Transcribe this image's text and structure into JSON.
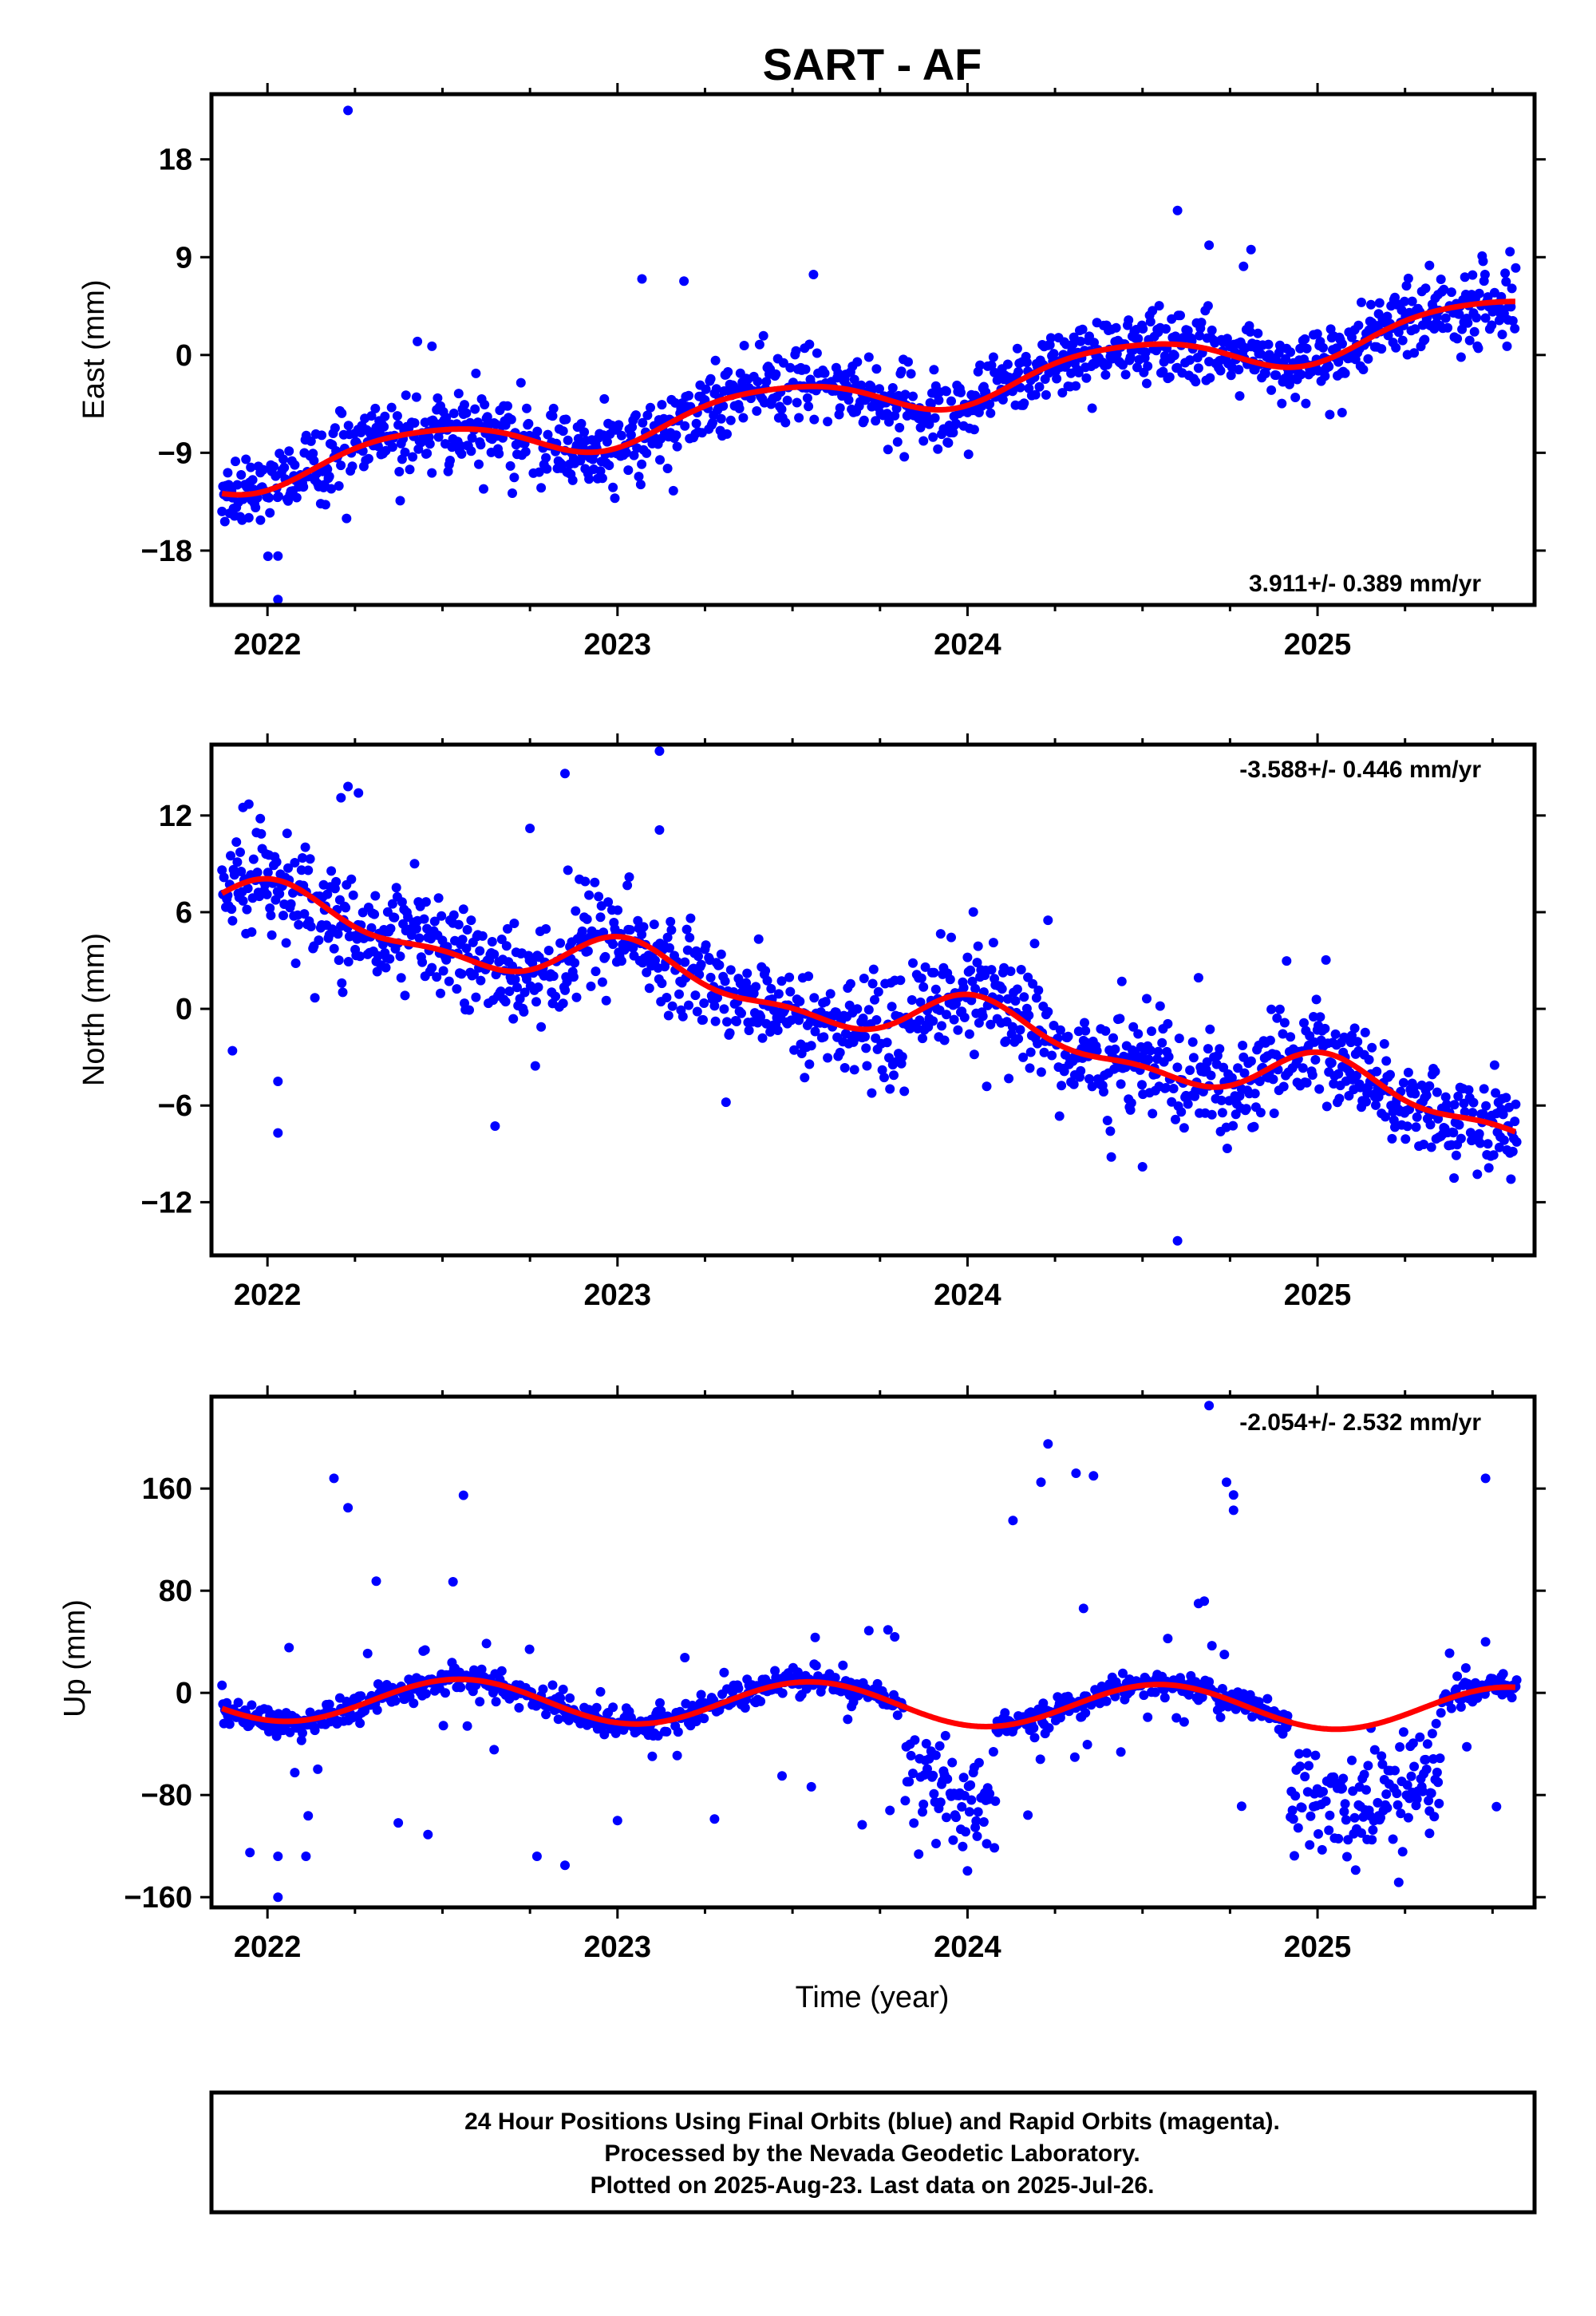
{
  "title": "SART - AF",
  "chart_data": [
    {
      "type": "scatter",
      "component": "east",
      "ylabel": "East (mm)",
      "ylim": [
        -23,
        24
      ],
      "xlim": [
        2021.84,
        2025.62
      ],
      "yticks": [
        -18,
        -9,
        0,
        9,
        18
      ],
      "ytick_labels": [
        "−18",
        "−9",
        "0",
        "9",
        "18"
      ],
      "xticks": [
        2022,
        2023,
        2024,
        2025
      ],
      "xtick_labels": [
        "2022",
        "2023",
        "2024",
        "2025"
      ],
      "rate_label": "3.911+/- 0.389 mm/yr",
      "rate_position": "bottom-right",
      "rate": 3.911,
      "offset": -10.8,
      "annual": {
        "amplitude": 1.9,
        "peak": 0.45
      },
      "semiannual": {
        "amplitude": 0.3,
        "peak": 0.2
      },
      "noise": 1.6,
      "outliers": [
        [
          2022.23,
          22.5
        ],
        [
          2022.03,
          -22.5
        ],
        [
          2022.03,
          -18.5
        ],
        [
          2021.98,
          -15.2
        ],
        [
          2022.47,
          0.8
        ],
        [
          2023.07,
          7.0
        ],
        [
          2023.19,
          6.8
        ],
        [
          2023.56,
          7.4
        ],
        [
          2024.6,
          13.3
        ],
        [
          2024.69,
          10.1
        ],
        [
          2024.81,
          9.7
        ],
        [
          2025.07,
          -5.3
        ],
        [
          2025.48,
          3.4
        ]
      ]
    },
    {
      "type": "scatter",
      "component": "north",
      "ylabel": "North (mm)",
      "ylim": [
        -15.3,
        16.4
      ],
      "xlim": [
        2021.84,
        2025.62
      ],
      "yticks": [
        -12,
        -6,
        0,
        6,
        12
      ],
      "ytick_labels": [
        "−12",
        "−6",
        "0",
        "6",
        "12"
      ],
      "xticks": [
        2022,
        2023,
        2024,
        2025
      ],
      "xtick_labels": [
        "2022",
        "2023",
        "2024",
        "2025"
      ],
      "rate_label": "-3.588+/- 0.446 mm/yr",
      "rate_position": "top-right",
      "rate": -3.588,
      "offset": 6.5,
      "annual": {
        "amplitude": 1.4,
        "peak": 0.05
      },
      "semiannual": {
        "amplitude": 0.6,
        "peak": 0.5
      },
      "noise": 1.5,
      "outliers": [
        [
          2022.23,
          13.8
        ],
        [
          2022.26,
          13.4
        ],
        [
          2022.21,
          13.1
        ],
        [
          2022.85,
          14.6
        ],
        [
          2022.75,
          11.2
        ],
        [
          2023.12,
          16.0
        ],
        [
          2023.12,
          11.1
        ],
        [
          2021.93,
          12.5
        ],
        [
          2021.9,
          -2.6
        ],
        [
          2022.03,
          -4.5
        ],
        [
          2022.03,
          -7.7
        ],
        [
          2024.6,
          -14.4
        ],
        [
          2024.5,
          -9.8
        ],
        [
          2025.39,
          -10.5
        ],
        [
          2024.23,
          5.5
        ]
      ]
    },
    {
      "type": "scatter",
      "component": "up",
      "ylabel": "Up (mm)",
      "ylim": [
        -168,
        232
      ],
      "xlim": [
        2021.84,
        2025.62
      ],
      "yticks": [
        -160,
        -80,
        0,
        80,
        160
      ],
      "ytick_labels": [
        "−160",
        "−80",
        "0",
        "80",
        "160"
      ],
      "xticks": [
        2022,
        2023,
        2024,
        2025
      ],
      "xtick_labels": [
        "2022",
        "2023",
        "2024",
        "2025"
      ],
      "xlabel": "Time (year)",
      "rate_label": "-2.054+/- 2.532 mm/yr",
      "rate_position": "top-right",
      "rate": -2.054,
      "offset": -5,
      "annual": {
        "amplitude": 17,
        "peak": 0.55
      },
      "semiannual": {
        "amplitude": 0,
        "peak": 0.0
      },
      "noise": 5,
      "outliers": [
        [
          2022.19,
          168
        ],
        [
          2022.23,
          145
        ],
        [
          2022.53,
          87
        ],
        [
          2022.77,
          -128
        ],
        [
          2022.85,
          -135
        ],
        [
          2022.03,
          -160
        ],
        [
          2021.95,
          -125
        ],
        [
          2022.03,
          -128
        ],
        [
          2022.11,
          -128
        ],
        [
          2023.0,
          -100
        ],
        [
          2023.47,
          -65
        ],
        [
          2023.91,
          -118
        ],
        [
          2024.13,
          135
        ],
        [
          2024.21,
          165
        ],
        [
          2024.23,
          195
        ],
        [
          2024.31,
          172
        ],
        [
          2024.36,
          170
        ],
        [
          2024.69,
          225
        ],
        [
          2024.74,
          165
        ],
        [
          2024.76,
          155
        ],
        [
          2024.76,
          143
        ],
        [
          2024.66,
          70
        ],
        [
          2025.48,
          168
        ],
        [
          2025.48,
          40
        ],
        [
          2025.32,
          -110
        ]
      ]
    }
  ],
  "footer": {
    "line1": "24 Hour Positions Using Final Orbits (blue) and Rapid Orbits (magenta).",
    "line2": "Processed by the Nevada Geodetic Laboratory.",
    "line3": "Plotted on 2025-Aug-23. Last data on 2025-Jul-26."
  },
  "colors": {
    "points": "#0000ff",
    "fit": "#ff0000",
    "frame": "#000000"
  }
}
